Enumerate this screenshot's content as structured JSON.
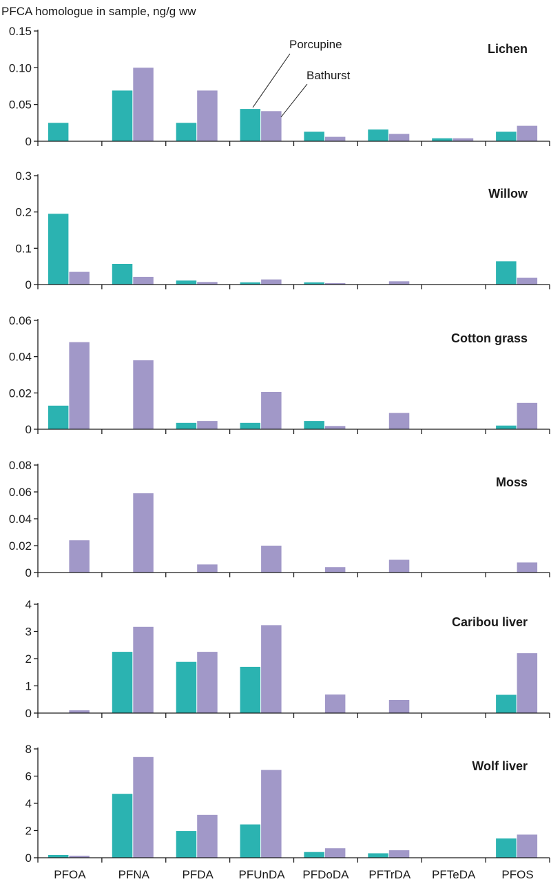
{
  "chart_data": {
    "type": "bar",
    "ylabel": "PFCA homologue in sample, ng/g ww",
    "categories": [
      "PFOA",
      "PFNA",
      "PFDA",
      "PFUnDA",
      "PFDoDA",
      "PFTrDA",
      "PFTeDA",
      "PFOS"
    ],
    "series_names": [
      "Porcupine",
      "Bathurst"
    ],
    "colors": {
      "Porcupine": "#2bb3b1",
      "Bathurst": "#a198c8"
    },
    "legend_placement": "annotations pointing to the fourth bar pair of the top panel",
    "panels": [
      {
        "title": "Lichen",
        "ylim": [
          0,
          0.15
        ],
        "yticks": [
          "0",
          "0.05",
          "0.10",
          "0.15"
        ],
        "series": [
          {
            "name": "Porcupine",
            "values": [
              0.025,
              0.069,
              0.025,
              0.044,
              0.013,
              0.016,
              0.004,
              0.013
            ]
          },
          {
            "name": "Bathurst",
            "values": [
              0,
              0.1,
              0.069,
              0.041,
              0.006,
              0.01,
              0.004,
              0.021
            ]
          }
        ]
      },
      {
        "title": "Willow",
        "ylim": [
          0,
          0.3
        ],
        "yticks": [
          "0",
          "0.1",
          "0.2",
          "0.3"
        ],
        "series": [
          {
            "name": "Porcupine",
            "values": [
              0.195,
              0.057,
              0.011,
              0.006,
              0.006,
              0,
              0,
              0.064
            ]
          },
          {
            "name": "Bathurst",
            "values": [
              0.035,
              0.021,
              0.007,
              0.014,
              0.004,
              0.009,
              0,
              0.019
            ]
          }
        ]
      },
      {
        "title": "Cotton grass",
        "ylim": [
          0,
          0.06
        ],
        "yticks": [
          "0",
          "0.02",
          "0.04",
          "0.06"
        ],
        "series": [
          {
            "name": "Porcupine",
            "values": [
              0.013,
              0,
              0.0035,
              0.0035,
              0.0045,
              0,
              0,
              0.002
            ]
          },
          {
            "name": "Bathurst",
            "values": [
              0.048,
              0.038,
              0.0045,
              0.0205,
              0.0018,
              0.009,
              0,
              0.0145
            ]
          }
        ]
      },
      {
        "title": "Moss",
        "ylim": [
          0,
          0.08
        ],
        "yticks": [
          "0",
          "0.02",
          "0.04",
          "0.06",
          "0.08"
        ],
        "series": [
          {
            "name": "Porcupine",
            "values": [
              0,
              0,
              0,
              0,
              0,
              0,
              0,
              0
            ]
          },
          {
            "name": "Bathurst",
            "values": [
              0.024,
              0.059,
              0.006,
              0.02,
              0.004,
              0.0095,
              0,
              0.0075
            ]
          }
        ]
      },
      {
        "title": "Caribou liver",
        "ylim": [
          0,
          4
        ],
        "yticks": [
          "0",
          "1",
          "2",
          "3",
          "4"
        ],
        "series": [
          {
            "name": "Porcupine",
            "values": [
              0,
              2.25,
              1.88,
              1.7,
              0,
              0,
              0,
              0.67
            ]
          },
          {
            "name": "Bathurst",
            "values": [
              0.1,
              3.17,
              2.25,
              3.23,
              0.68,
              0.48,
              0,
              2.2
            ]
          }
        ]
      },
      {
        "title": "Wolf liver",
        "ylim": [
          0,
          8
        ],
        "yticks": [
          "0",
          "2",
          "4",
          "6",
          "8"
        ],
        "series": [
          {
            "name": "Porcupine",
            "values": [
              0.2,
              4.7,
              1.97,
              2.45,
              0.42,
              0.33,
              0,
              1.42
            ]
          },
          {
            "name": "Bathurst",
            "values": [
              0.15,
              7.4,
              3.15,
              6.45,
              0.7,
              0.55,
              0,
              1.7
            ]
          }
        ]
      }
    ]
  }
}
